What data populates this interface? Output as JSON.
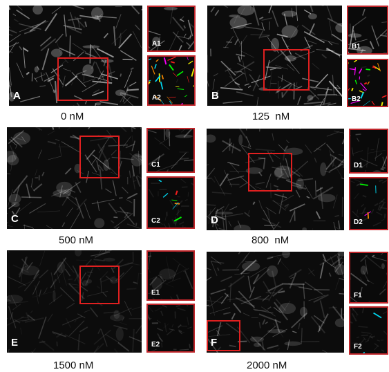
{
  "panels": [
    {
      "id": "A",
      "letter": "A",
      "inset1": "A1",
      "inset2": "A2",
      "caption": "0 nM",
      "brightness": "high",
      "colored": "dense"
    },
    {
      "id": "B",
      "letter": "B",
      "inset1": "B1",
      "inset2": "B2",
      "caption": "125  nM",
      "brightness": "high",
      "colored": "dense"
    },
    {
      "id": "C",
      "letter": "C",
      "inset1": "C1",
      "inset2": "C2",
      "caption": "500 nM",
      "brightness": "medium",
      "colored": "sparse"
    },
    {
      "id": "D",
      "letter": "D",
      "inset1": "D1",
      "inset2": "D2",
      "caption": "800  nM",
      "brightness": "medium",
      "colored": "sparse"
    },
    {
      "id": "E",
      "letter": "E",
      "inset1": "E1",
      "inset2": "E2",
      "caption": "1500 nM",
      "brightness": "low",
      "colored": "none"
    },
    {
      "id": "F",
      "letter": "F",
      "inset1": "F1",
      "inset2": "F2",
      "caption": "2000 nM",
      "brightness": "medium",
      "colored": "few"
    }
  ],
  "colors": {
    "roi": "#e02020",
    "inset_border": "#c0262b",
    "overlay": [
      "#ff00ff",
      "#00ff00",
      "#00e5ff",
      "#ffff00",
      "#ff2020",
      "#ff8c00"
    ]
  }
}
